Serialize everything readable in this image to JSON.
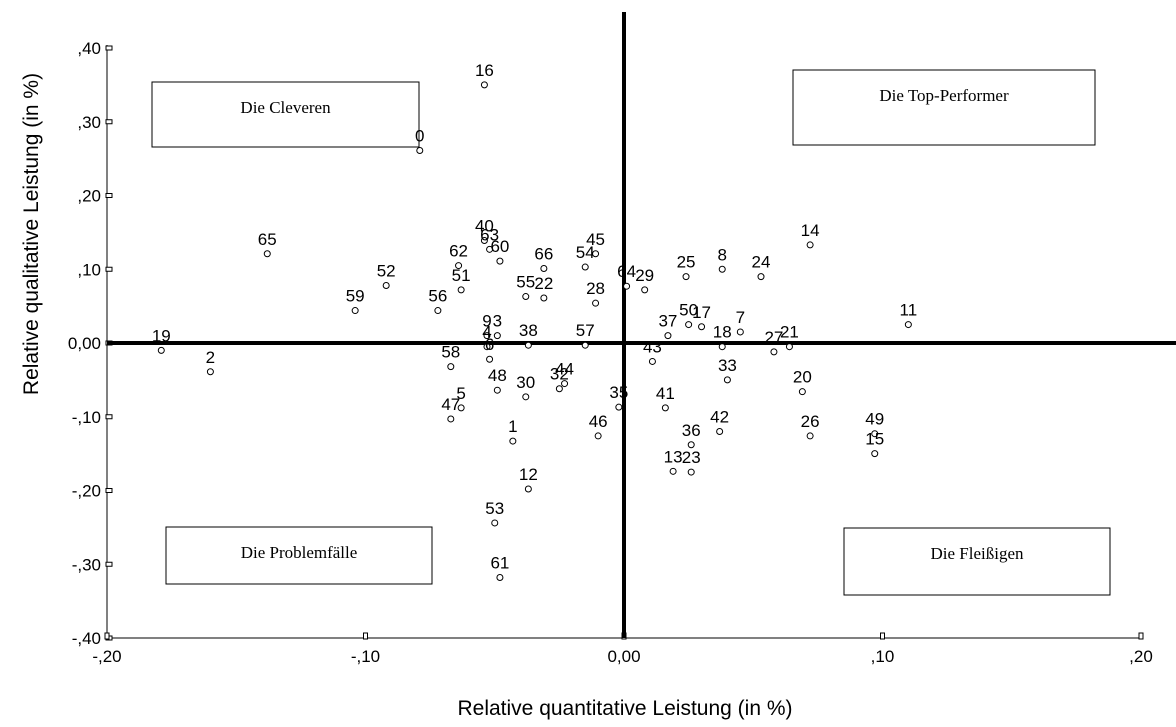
{
  "chart_data": {
    "type": "scatter",
    "title": "",
    "xlabel": "Relative quantitative Leistung (in %)",
    "ylabel": "Relative qualitative Leistung (in %)",
    "xlim": [
      -0.2,
      0.2
    ],
    "ylim": [
      -0.4,
      0.4
    ],
    "x_ticks": [
      -0.2,
      -0.1,
      0.0,
      0.1,
      0.2
    ],
    "x_tick_labels": [
      "-,20",
      "-,10",
      "0,00",
      ",10",
      ",20"
    ],
    "y_ticks": [
      0.4,
      0.3,
      0.2,
      0.1,
      0.0,
      -0.1,
      -0.2,
      -0.3,
      -0.4
    ],
    "y_tick_labels": [
      ",40",
      ",30",
      ",20",
      ",10",
      "0,00",
      "-,10",
      "-,20",
      "-,30",
      "-,40"
    ],
    "grid": false,
    "reference_lines": {
      "x": 0,
      "y": 0
    },
    "quadrant_labels": [
      {
        "quadrant": "top-left",
        "text": "Die Cleveren"
      },
      {
        "quadrant": "top-right",
        "text": "Die Top-Performer"
      },
      {
        "quadrant": "bottom-left",
        "text": "Die Problemfälle"
      },
      {
        "quadrant": "bottom-right",
        "text": "Die Fleißigen"
      }
    ],
    "points": [
      {
        "label": "16",
        "x": -0.054,
        "y": 0.35
      },
      {
        "label": "0",
        "x": -0.079,
        "y": 0.261
      },
      {
        "label": "65",
        "x": -0.138,
        "y": 0.121
      },
      {
        "label": "40",
        "x": -0.054,
        "y": 0.139
      },
      {
        "label": "63",
        "x": -0.052,
        "y": 0.127
      },
      {
        "label": "62",
        "x": -0.064,
        "y": 0.105
      },
      {
        "label": "60",
        "x": -0.048,
        "y": 0.111
      },
      {
        "label": "66",
        "x": -0.031,
        "y": 0.101
      },
      {
        "label": "54",
        "x": -0.015,
        "y": 0.103
      },
      {
        "label": "45",
        "x": -0.011,
        "y": 0.121
      },
      {
        "label": "52",
        "x": -0.092,
        "y": 0.078
      },
      {
        "label": "51",
        "x": -0.063,
        "y": 0.072
      },
      {
        "label": "59",
        "x": -0.104,
        "y": 0.044
      },
      {
        "label": "56",
        "x": -0.072,
        "y": 0.044
      },
      {
        "label": "55",
        "x": -0.038,
        "y": 0.063
      },
      {
        "label": "22",
        "x": -0.031,
        "y": 0.061
      },
      {
        "label": "28",
        "x": -0.011,
        "y": 0.054
      },
      {
        "label": "64",
        "x": 0.001,
        "y": 0.077
      },
      {
        "label": "29",
        "x": 0.008,
        "y": 0.072
      },
      {
        "label": "25",
        "x": 0.024,
        "y": 0.09
      },
      {
        "label": "8",
        "x": 0.038,
        "y": 0.1
      },
      {
        "label": "24",
        "x": 0.053,
        "y": 0.09
      },
      {
        "label": "14",
        "x": 0.072,
        "y": 0.133
      },
      {
        "label": "11",
        "x": 0.11,
        "y": 0.025
      },
      {
        "label": "19",
        "x": -0.179,
        "y": -0.01
      },
      {
        "label": "2",
        "x": -0.16,
        "y": -0.039
      },
      {
        "label": "9",
        "x": -0.053,
        "y": 0.01
      },
      {
        "label": "3",
        "x": -0.049,
        "y": 0.01
      },
      {
        "label": "4",
        "x": -0.053,
        "y": -0.005
      },
      {
        "label": "38",
        "x": -0.037,
        "y": -0.003
      },
      {
        "label": "57",
        "x": -0.015,
        "y": -0.003
      },
      {
        "label": "58",
        "x": -0.067,
        "y": -0.032
      },
      {
        "label": "6",
        "x": -0.052,
        "y": -0.022
      },
      {
        "label": "48",
        "x": -0.049,
        "y": -0.064
      },
      {
        "label": "44",
        "x": -0.023,
        "y": -0.055
      },
      {
        "label": "32",
        "x": -0.025,
        "y": -0.062
      },
      {
        "label": "30",
        "x": -0.038,
        "y": -0.073
      },
      {
        "label": "5",
        "x": -0.063,
        "y": -0.088
      },
      {
        "label": "47",
        "x": -0.067,
        "y": -0.103
      },
      {
        "label": "1",
        "x": -0.043,
        "y": -0.133
      },
      {
        "label": "35",
        "x": -0.002,
        "y": -0.087
      },
      {
        "label": "46",
        "x": -0.01,
        "y": -0.126
      },
      {
        "label": "12",
        "x": -0.037,
        "y": -0.198
      },
      {
        "label": "53",
        "x": -0.05,
        "y": -0.244
      },
      {
        "label": "61",
        "x": -0.048,
        "y": -0.318
      },
      {
        "label": "37",
        "x": 0.017,
        "y": 0.01
      },
      {
        "label": "50",
        "x": 0.025,
        "y": 0.025
      },
      {
        "label": "17",
        "x": 0.03,
        "y": 0.022
      },
      {
        "label": "7",
        "x": 0.045,
        "y": 0.015
      },
      {
        "label": "18",
        "x": 0.038,
        "y": -0.005
      },
      {
        "label": "43",
        "x": 0.011,
        "y": -0.025
      },
      {
        "label": "33",
        "x": 0.04,
        "y": -0.05
      },
      {
        "label": "27",
        "x": 0.058,
        "y": -0.012
      },
      {
        "label": "21",
        "x": 0.064,
        "y": -0.005
      },
      {
        "label": "20",
        "x": 0.069,
        "y": -0.066
      },
      {
        "label": "41",
        "x": 0.016,
        "y": -0.088
      },
      {
        "label": "42",
        "x": 0.037,
        "y": -0.12
      },
      {
        "label": "36",
        "x": 0.026,
        "y": -0.138
      },
      {
        "label": "13",
        "x": 0.019,
        "y": -0.174
      },
      {
        "label": "23",
        "x": 0.026,
        "y": -0.175
      },
      {
        "label": "26",
        "x": 0.072,
        "y": -0.126
      },
      {
        "label": "49",
        "x": 0.097,
        "y": -0.123
      },
      {
        "label": "15",
        "x": 0.097,
        "y": -0.15
      }
    ]
  }
}
